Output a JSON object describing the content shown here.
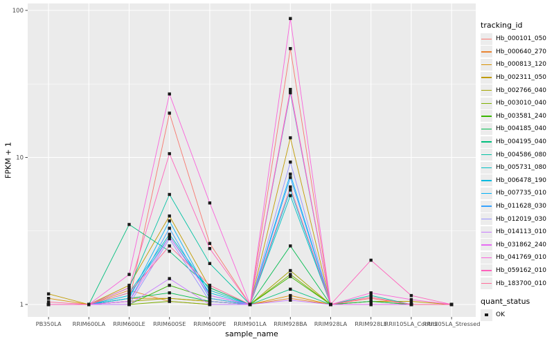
{
  "chart_data": {
    "type": "line",
    "title": "",
    "xlabel": "sample_name",
    "ylabel": "FPKM + 1",
    "y_scale": "log10",
    "ylim": [
      0.83,
      110
    ],
    "grid": true,
    "legend_position": "right",
    "y_ticks": [
      {
        "v": 1,
        "label": "1"
      },
      {
        "v": 10,
        "label": "10"
      },
      {
        "v": 100,
        "label": "100"
      }
    ],
    "y_minor_ticks": [
      3.1623,
      31.623
    ],
    "categories": [
      "PB350LA",
      "RRIM600LA",
      "RRIM600LE",
      "RRIM600SE",
      "RRIM600PE",
      "RRIM901LA",
      "RRIM928BA",
      "RRIM928LA",
      "RRIM928LE",
      "RRII105LA_Control",
      "RRII105LA_Stressed"
    ],
    "series": [
      {
        "name": "Hb_000101_050",
        "color": "#F8766D",
        "values": [
          1,
          1,
          1.05,
          20,
          2.6,
          1,
          55,
          1,
          1.1,
          1,
          1
        ]
      },
      {
        "name": "Hb_000640_270",
        "color": "#EA8331",
        "values": [
          1,
          1,
          1.25,
          1.05,
          1,
          1,
          1.1,
          1,
          1,
          1,
          1
        ]
      },
      {
        "name": "Hb_000813_120",
        "color": "#D89000",
        "values": [
          1.1,
          1,
          1.1,
          1.1,
          1.05,
          1,
          1.15,
          1,
          1.05,
          1,
          1
        ]
      },
      {
        "name": "Hb_002311_050",
        "color": "#C09B00",
        "values": [
          1.18,
          1,
          1.35,
          4.0,
          1.3,
          1,
          13.6,
          1,
          1.05,
          1.05,
          1
        ]
      },
      {
        "name": "Hb_002766_040",
        "color": "#A3A500",
        "values": [
          1,
          1,
          1.05,
          1.1,
          1.05,
          1,
          1.7,
          1,
          1,
          1,
          1
        ]
      },
      {
        "name": "Hb_003010_040",
        "color": "#7CAE00",
        "values": [
          1,
          1,
          1,
          1.05,
          1,
          1,
          1.6,
          1,
          1,
          1,
          1
        ]
      },
      {
        "name": "Hb_003581_240",
        "color": "#39B600",
        "values": [
          1,
          1,
          1,
          1.35,
          1.1,
          1,
          1.55,
          1,
          1,
          1,
          1
        ]
      },
      {
        "name": "Hb_004185_040",
        "color": "#00BB4E",
        "values": [
          1,
          1,
          1.1,
          1.2,
          1.05,
          1,
          2.5,
          1,
          1.05,
          1,
          1
        ]
      },
      {
        "name": "Hb_004195_040",
        "color": "#00BF7D",
        "values": [
          1,
          1,
          3.5,
          2.3,
          1.3,
          1,
          1.27,
          1,
          1,
          1,
          1
        ]
      },
      {
        "name": "Hb_004586_080",
        "color": "#00C1A3",
        "values": [
          1,
          1,
          1.3,
          5.6,
          1.9,
          1,
          27.5,
          1,
          1.15,
          1,
          1
        ]
      },
      {
        "name": "Hb_005731_080",
        "color": "#00BFC4",
        "values": [
          1,
          1,
          1.2,
          3.0,
          1.25,
          1,
          5.5,
          1,
          1,
          1,
          1
        ]
      },
      {
        "name": "Hb_006478_190",
        "color": "#00BAE0",
        "values": [
          1,
          1,
          1.15,
          2.9,
          1.2,
          1,
          6.0,
          1,
          1,
          1,
          1
        ]
      },
      {
        "name": "Hb_007735_010",
        "color": "#00B0F6",
        "values": [
          1,
          1,
          1.1,
          3.7,
          1.15,
          1,
          7.7,
          1,
          1,
          1,
          1
        ]
      },
      {
        "name": "Hb_011628_030",
        "color": "#35A2FF",
        "values": [
          1,
          1,
          1.05,
          3.3,
          1.1,
          1,
          7.3,
          1,
          1,
          1,
          1
        ]
      },
      {
        "name": "Hb_012019_030",
        "color": "#9590FF",
        "values": [
          1,
          1,
          1,
          2.8,
          1.05,
          1,
          9.3,
          1,
          1,
          1,
          1
        ]
      },
      {
        "name": "Hb_014113_010",
        "color": "#C77CFF",
        "values": [
          1,
          1,
          1,
          1.5,
          1,
          1,
          1.07,
          1,
          1,
          1,
          1
        ]
      },
      {
        "name": "Hb_031862_240",
        "color": "#E76BF3",
        "values": [
          1,
          1,
          1.05,
          2.9,
          1.15,
          1,
          28,
          1,
          1,
          1,
          1
        ]
      },
      {
        "name": "Hb_041769_010",
        "color": "#FA62DB",
        "values": [
          1,
          1,
          1.6,
          27,
          4.9,
          1,
          88,
          1,
          1.2,
          1.08,
          1
        ]
      },
      {
        "name": "Hb_059162_010",
        "color": "#FF62BC",
        "values": [
          1,
          1,
          1.3,
          10.6,
          2.4,
          1,
          29,
          1,
          2.0,
          1.15,
          1
        ]
      },
      {
        "name": "Hb_183700_010",
        "color": "#FF6A98",
        "values": [
          1.04,
          1,
          1.2,
          2.5,
          1.35,
          1,
          6.3,
          1,
          1.12,
          1,
          1
        ]
      }
    ],
    "legend": {
      "color_title": "tracking_id",
      "shape_title": "quant_status",
      "shape_items": [
        {
          "label": "OK",
          "shape": "square",
          "color": "#1a1a1a"
        }
      ]
    },
    "panel_background": "#EBEBEB",
    "gridline_color": "#FFFFFF",
    "point_color": "#1a1a1a"
  }
}
